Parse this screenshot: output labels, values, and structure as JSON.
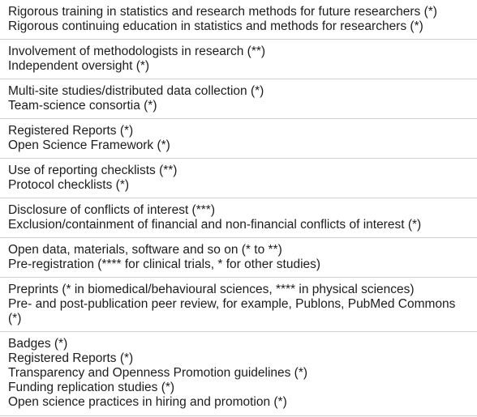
{
  "rows": [
    {
      "lines": [
        "Rigorous training in statistics and research methods for future researchers (*)",
        "Rigorous continuing education in statistics and methods for researchers (*)"
      ]
    },
    {
      "lines": [
        "Involvement of methodologists in research (**)",
        "Independent oversight (*)"
      ]
    },
    {
      "lines": [
        "Multi-site studies/distributed data collection (*)",
        "Team-science consortia (*)"
      ]
    },
    {
      "lines": [
        "Registered Reports (*)",
        "Open Science Framework (*)"
      ]
    },
    {
      "lines": [
        "Use of reporting checklists (**)",
        "Protocol checklists (*)"
      ]
    },
    {
      "lines": [
        "Disclosure of conflicts of interest (***)",
        "Exclusion/containment of financial and non-financial conflicts of interest (*)"
      ]
    },
    {
      "lines": [
        "Open data, materials, software and so on (* to **)",
        "Pre-registration (**** for clinical trials, * for other studies)"
      ]
    },
    {
      "lines": [
        "Preprints (* in biomedical/behavioural sciences, **** in physical sciences)",
        "Pre- and post-publication peer review, for example, Publons, PubMed Commons (*)"
      ]
    },
    {
      "lines": [
        "Badges (*)",
        "Registered Reports (*)",
        "Transparency and Openness Promotion guidelines (*)",
        "Funding replication studies (*)",
        "Open science practices in hiring and promotion (*)"
      ]
    }
  ]
}
